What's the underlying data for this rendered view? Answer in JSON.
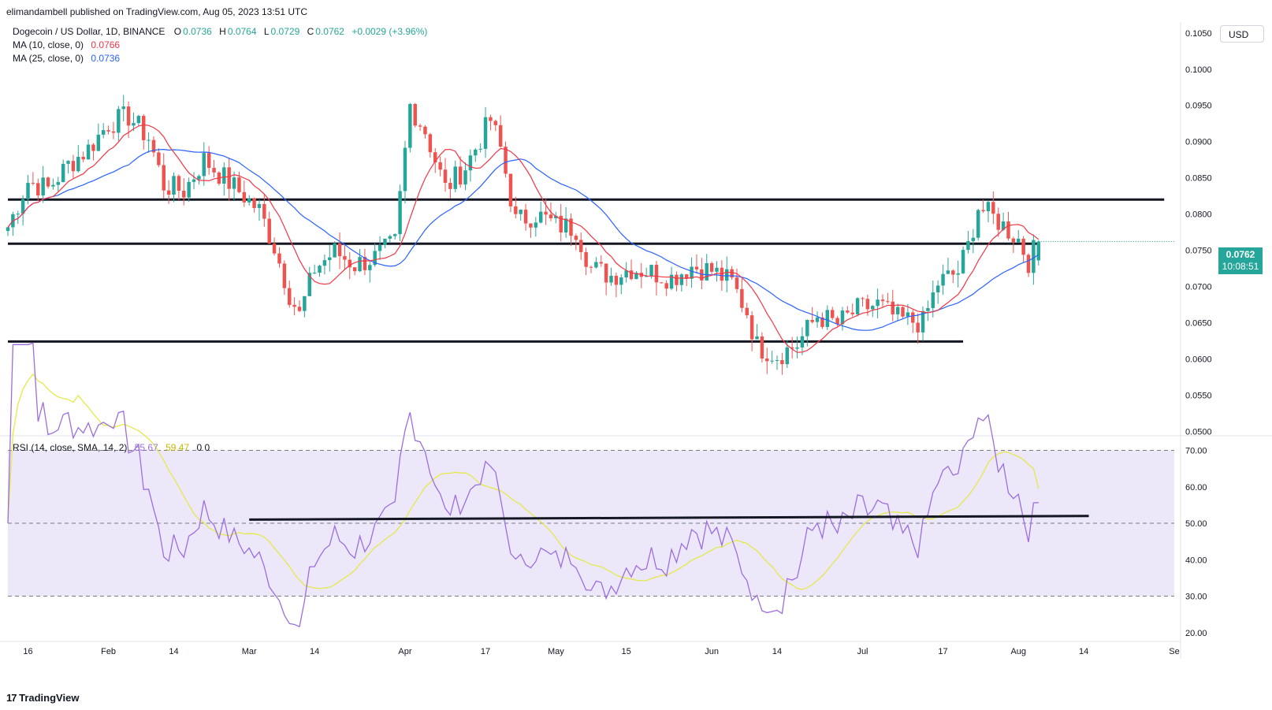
{
  "header": {
    "published_by": "elimandambell published on TradingView.com, Aug 05, 2023 13:51 UTC"
  },
  "legend": {
    "symbol": "Dogecoin / US Dollar, 1D, BINANCE",
    "o_label": "O",
    "o": "0.0736",
    "h_label": "H",
    "h": "0.0764",
    "l_label": "L",
    "l": "0.0729",
    "c_label": "C",
    "c": "0.0762",
    "change": "+0.0029 (+3.96%)",
    "ma10_label": "MA (10, close, 0)",
    "ma10_value": "0.0766",
    "ma25_label": "MA (25, close, 0)",
    "ma25_value": "0.0736",
    "rsi_label": "RSI (14, close, SMA, 14, 2)",
    "rsi_value": "55.67",
    "rsi_sma_value": "59.47",
    "rsi_extra": "0  0"
  },
  "currency_button": "USD",
  "last_price": {
    "price": "0.0762",
    "countdown": "10:08:51"
  },
  "brand": {
    "name": "TradingView"
  },
  "colors": {
    "up": "#26a69a",
    "down": "#ef5350",
    "ma10": "#f23645",
    "ma25": "#2962ff",
    "rsi": "#9c6ede",
    "rsi_sma": "#e5e84a",
    "rsi_band": "#ede7fa",
    "level": "#131722"
  },
  "chart_data": [
    {
      "type": "candlestick",
      "title": "Dogecoin / US Dollar, 1D, BINANCE",
      "x_ticks": [
        "16",
        "Feb",
        "14",
        "Mar",
        "14",
        "Apr",
        "17",
        "May",
        "15",
        "Jun",
        "14",
        "Jul",
        "17",
        "Aug",
        "14",
        "Se"
      ],
      "y_ticks": [
        "0.1050",
        "0.1000",
        "0.0950",
        "0.0900",
        "0.0850",
        "0.0800",
        "0.0750",
        "0.0700",
        "0.0650",
        "0.0600",
        "0.0550",
        "0.0500"
      ],
      "ylim": [
        0.0495,
        0.1065
      ],
      "x_range": [
        "2023-01-12",
        "2023-09-01"
      ],
      "anchors": [
        [
          "2023-01-12",
          0.0782
        ],
        [
          "2023-01-16",
          0.0845
        ],
        [
          "2023-01-20",
          0.0835
        ],
        [
          "2023-01-24",
          0.0868
        ],
        [
          "2023-01-28",
          0.089
        ],
        [
          "2023-02-01",
          0.0925
        ],
        [
          "2023-02-05",
          0.0935
        ],
        [
          "2023-02-09",
          0.0905
        ],
        [
          "2023-02-12",
          0.084
        ],
        [
          "2023-02-16",
          0.0832
        ],
        [
          "2023-02-20",
          0.0875
        ],
        [
          "2023-02-24",
          0.085
        ],
        [
          "2023-02-28",
          0.0825
        ],
        [
          "2023-03-03",
          0.0805
        ],
        [
          "2023-03-06",
          0.0755
        ],
        [
          "2023-03-09",
          0.069
        ],
        [
          "2023-03-11",
          0.066
        ],
        [
          "2023-03-14",
          0.0725
        ],
        [
          "2023-03-18",
          0.0748
        ],
        [
          "2023-03-22",
          0.073
        ],
        [
          "2023-03-26",
          0.074
        ],
        [
          "2023-03-30",
          0.076
        ],
        [
          "2023-04-02",
          0.095
        ],
        [
          "2023-04-05",
          0.0915
        ],
        [
          "2023-04-09",
          0.0835
        ],
        [
          "2023-04-13",
          0.0865
        ],
        [
          "2023-04-18",
          0.093
        ],
        [
          "2023-04-20",
          0.089
        ],
        [
          "2023-04-23",
          0.079
        ],
        [
          "2023-04-27",
          0.08
        ],
        [
          "2023-05-01",
          0.0785
        ],
        [
          "2023-05-05",
          0.078
        ],
        [
          "2023-05-08",
          0.0725
        ],
        [
          "2023-05-12",
          0.0715
        ],
        [
          "2023-05-16",
          0.0725
        ],
        [
          "2023-05-20",
          0.072
        ],
        [
          "2023-05-24",
          0.0712
        ],
        [
          "2023-05-28",
          0.0728
        ],
        [
          "2023-06-01",
          0.0722
        ],
        [
          "2023-06-05",
          0.0705
        ],
        [
          "2023-06-08",
          0.0665
        ],
        [
          "2023-06-10",
          0.0618
        ],
        [
          "2023-06-14",
          0.0605
        ],
        [
          "2023-06-18",
          0.062
        ],
        [
          "2023-06-22",
          0.066
        ],
        [
          "2023-06-26",
          0.0648
        ],
        [
          "2023-06-30",
          0.0668
        ],
        [
          "2023-07-04",
          0.0675
        ],
        [
          "2023-07-08",
          0.0655
        ],
        [
          "2023-07-13",
          0.065
        ],
        [
          "2023-07-16",
          0.0705
        ],
        [
          "2023-07-20",
          0.072
        ],
        [
          "2023-07-22",
          0.0755
        ],
        [
          "2023-07-24",
          0.081
        ],
        [
          "2023-07-28",
          0.079
        ],
        [
          "2023-08-01",
          0.0765
        ],
        [
          "2023-08-03",
          0.0735
        ],
        [
          "2023-08-05",
          0.0762
        ]
      ],
      "close_2023_08_05": 0.0762,
      "horizontal_levels": [
        {
          "value": 0.082,
          "from": "2023-01-12",
          "to": "2023-08-30"
        },
        {
          "value": 0.0759,
          "from": "2023-01-12",
          "to": "2023-08-05"
        },
        {
          "value": 0.0624,
          "from": "2023-01-12",
          "to": "2023-07-21"
        }
      ],
      "overlays": [
        "MA (10, close, 0)",
        "MA (25, close, 0)"
      ]
    },
    {
      "type": "line",
      "title": "RSI (14, close, SMA, 14, 2)",
      "y_ticks": [
        "70.00",
        "60.00",
        "50.00",
        "40.00",
        "30.00",
        "20.00"
      ],
      "ylim": [
        18,
        74
      ],
      "bands": [
        70,
        30
      ],
      "midline": 50,
      "trendline": {
        "from": [
          "2023-03-01",
          51.0
        ],
        "to": [
          "2023-08-15",
          52.0
        ]
      },
      "last_rsi": 55.67,
      "last_rsi_sma": 59.47
    }
  ]
}
